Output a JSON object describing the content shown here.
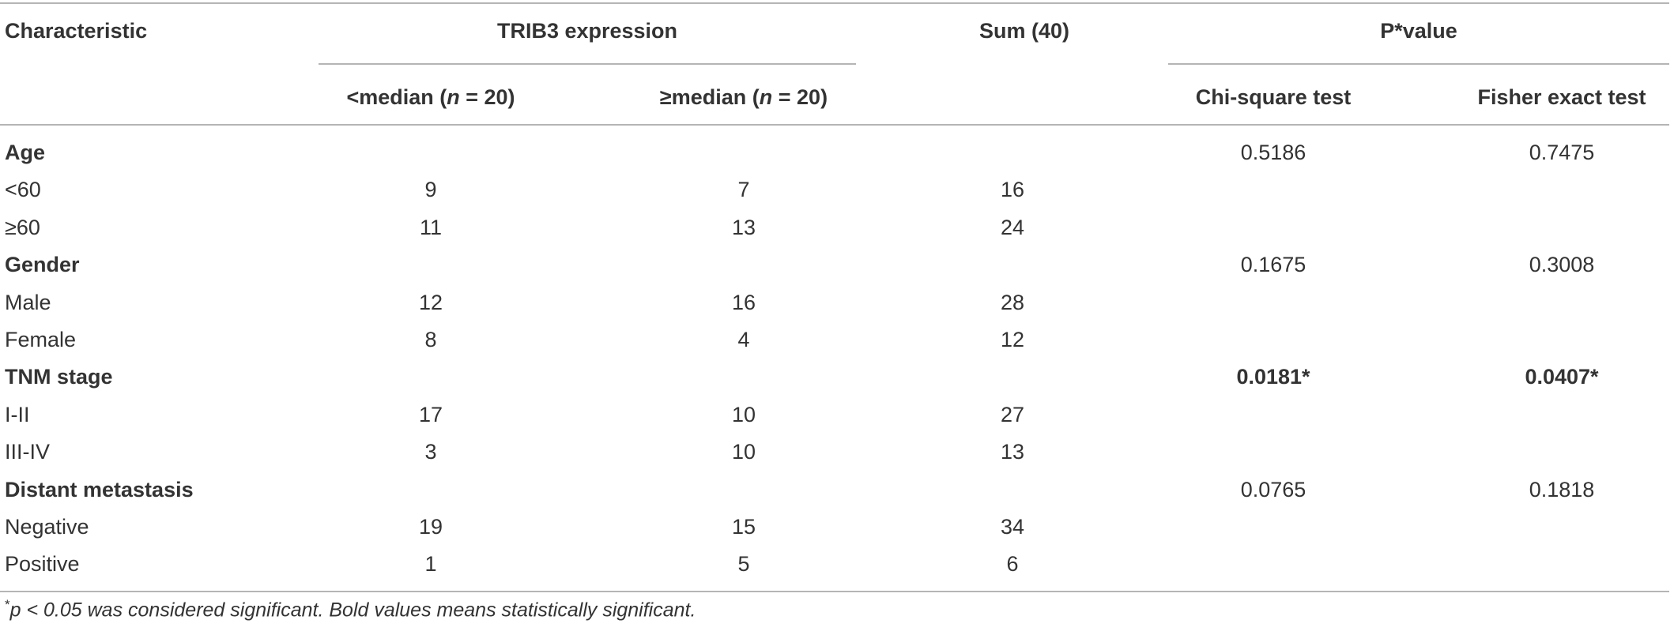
{
  "header": {
    "characteristic": "Characteristic",
    "trib3": "TRIB3 expression",
    "sum": "Sum (40)",
    "pvalue": "P*value",
    "below_median": "<median (n = 20)",
    "below_median_pre": "<median (",
    "n1": "n",
    "eq1": " = 20)",
    "above_median_pre": "≥median (",
    "n2": "n",
    "eq2": " = 20)",
    "chi_square": "Chi-square test",
    "fisher": "Fisher exact test"
  },
  "rows": [
    {
      "label": "Age",
      "bold": true,
      "low": "",
      "high": "",
      "sum": "",
      "chi": "0.5186",
      "fisher": "0.7475",
      "sig": false
    },
    {
      "label": "<60",
      "bold": false,
      "low": "9",
      "high": "7",
      "sum": "16",
      "chi": "",
      "fisher": ""
    },
    {
      "label": "≥60",
      "bold": false,
      "low": "11",
      "high": "13",
      "sum": "24",
      "chi": "",
      "fisher": ""
    },
    {
      "label": "Gender",
      "bold": true,
      "low": "",
      "high": "",
      "sum": "",
      "chi": "0.1675",
      "fisher": "0.3008",
      "sig": false
    },
    {
      "label": "Male",
      "bold": false,
      "low": "12",
      "high": "16",
      "sum": "28",
      "chi": "",
      "fisher": ""
    },
    {
      "label": "Female",
      "bold": false,
      "low": "8",
      "high": "4",
      "sum": "12",
      "chi": "",
      "fisher": ""
    },
    {
      "label": "TNM stage",
      "bold": true,
      "low": "",
      "high": "",
      "sum": "",
      "chi": "0.0181*",
      "fisher": "0.0407*",
      "sig": true
    },
    {
      "label": "I-II",
      "bold": false,
      "low": "17",
      "high": "10",
      "sum": "27",
      "chi": "",
      "fisher": ""
    },
    {
      "label": "III-IV",
      "bold": false,
      "low": "3",
      "high": "10",
      "sum": "13",
      "chi": "",
      "fisher": ""
    },
    {
      "label": "Distant metastasis",
      "bold": true,
      "low": "",
      "high": "",
      "sum": "",
      "chi": "0.0765",
      "fisher": "0.1818",
      "sig": false
    },
    {
      "label": "Negative",
      "bold": false,
      "low": "19",
      "high": "15",
      "sum": "34",
      "chi": "",
      "fisher": ""
    },
    {
      "label": "Positive",
      "bold": false,
      "low": "1",
      "high": "5",
      "sum": "6",
      "chi": "",
      "fisher": ""
    }
  ],
  "footnote": {
    "star": "*",
    "text": "p < 0.05 was considered significant. Bold values means statistically significant."
  }
}
